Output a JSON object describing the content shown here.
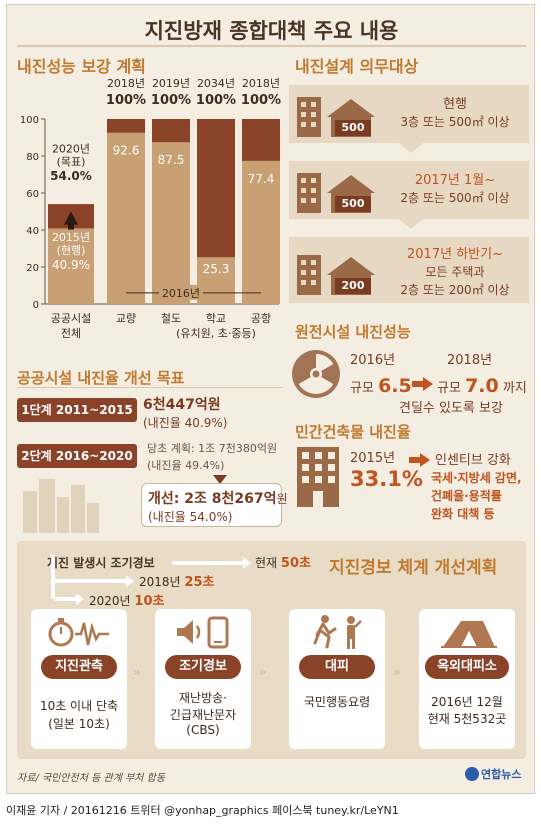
{
  "title": "지진방재 종합대책 주요 내용",
  "s1": {
    "title": "내진성능 보강 계획",
    "axis": [
      "0",
      "20",
      "40",
      "60",
      "80",
      "100"
    ],
    "bars": [
      {
        "top": "",
        "low": "",
        "mid": "",
        "value": 40.9,
        "label": "공공시설\n전체"
      },
      {
        "top": "2018년\n100%",
        "low": "92.6",
        "value": 92.6,
        "label": "교량"
      },
      {
        "top": "2019년\n100%",
        "low": "87.5",
        "value": 87.5,
        "label": "철도"
      },
      {
        "top": "2034년\n100%",
        "low": "25.3",
        "value": 25.3,
        "label": "학교\n(유치원, 초·중등)"
      },
      {
        "top": "2018년\n100%",
        "low": "77.4",
        "value": 77.4,
        "label": "공항"
      }
    ],
    "target_label": "2020년\n(목표)",
    "target_value": "54.0%",
    "current_label": "2015년\n(현행)",
    "current_value": "40.9%",
    "year_2016": "2016년"
  },
  "chart_data": {
    "type": "bar",
    "categories": [
      "공공시설 전체",
      "교량",
      "철도",
      "학교 (유치원, 초·중등)",
      "공항"
    ],
    "values": [
      40.9,
      92.6,
      87.5,
      25.3,
      77.4
    ],
    "ylim": [
      0,
      100
    ]
  },
  "s2": {
    "title": "내진설계 의무대상",
    "rows": [
      {
        "badge": "500",
        "line1": "현행",
        "line2": "3층 또는 500㎡ 이상"
      },
      {
        "badge": "500",
        "line1": "2017년 1월~",
        "line2": "2층 또는 500㎡ 이상"
      },
      {
        "badge": "200",
        "line1": "2017년 하반기~",
        "line2": "모든 주택과",
        "line3": "2층 또는 200㎡ 이상"
      }
    ]
  },
  "s3": {
    "title": "원전시설 내진성능",
    "y1": "2016년",
    "v1_pre": "규모",
    "v1": "6.5",
    "y2": "2018년",
    "v2_pre": "규모",
    "v2": "7.0",
    "v2_post": "까지",
    "note": "견딜수 있도록 보강"
  },
  "s4": {
    "title": "민간건축물 내진율",
    "year": "2015년",
    "value": "33.1%",
    "t1": "인센티브 강화",
    "t2": "국세·지방세 감면,",
    "t3": "건폐율·용적률",
    "t4": "완화 대책 등"
  },
  "s5": {
    "title": "공공시설 내진율 개선 목표",
    "stage1": "1단계 2011~2015",
    "stage1_v": "6천447억원",
    "stage1_r": "(내진율 40.9%)",
    "stage2": "2단계 2016~2020",
    "stage2_plan": "당초 계획: 1조 7천380억원",
    "stage2_plan_r": "(내진율 49.4%)",
    "stage2_imp_pre": "개선: ",
    "stage2_imp": "2조 8천267억",
    "stage2_imp_suf": "원",
    "stage2_imp_r": "(내진율 54.0%)"
  },
  "s6": {
    "title": "지진경보 체계 개선계획",
    "start": "지진 발생시 조기경보",
    "now_pre": "현재 ",
    "now_v": "50초",
    "y2018_pre": "2018년 ",
    "y2018_v": "25초",
    "y2020_pre": "2020년 ",
    "y2020_v": "10초",
    "cards": [
      {
        "label": "지진관측",
        "d1": "10초 이내 단축",
        "d2": "(일본 10초)"
      },
      {
        "label": "조기경보",
        "d1": "재난방송·",
        "d2": "긴급재난문자",
        "d3": "(CBS)"
      },
      {
        "label": "대피",
        "d1": "국민행동요령"
      },
      {
        "label": "옥외대피소",
        "d1": "2016년 12월",
        "d2": "현재 5천532곳"
      }
    ]
  },
  "source": "자료/ 국민안전처 등 관계 부처 합동",
  "logo": "연합뉴스",
  "credit": "이재윤 기자 / 20161216  트위터 @yonhap_graphics  페이스북 tuney.kr/LeYN1"
}
